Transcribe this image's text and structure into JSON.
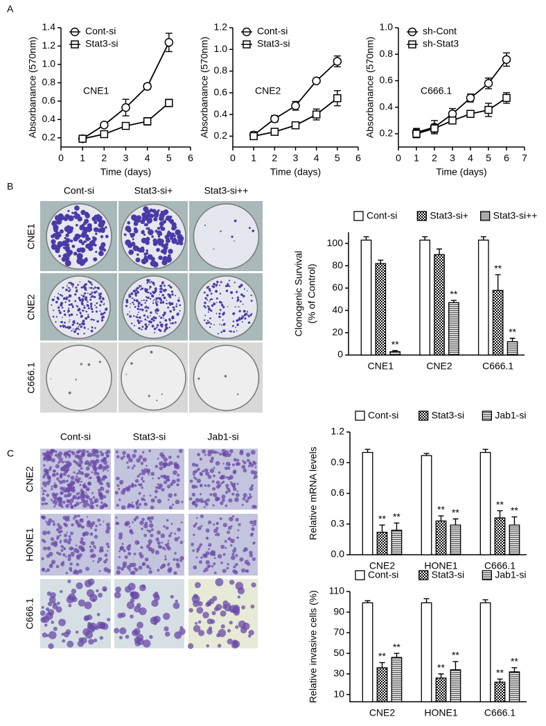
{
  "panel_labels": [
    "A",
    "B",
    "C"
  ],
  "colony_images": {
    "columns": [
      "Cont-si",
      "Stat3-si+",
      "Stat3-si++"
    ],
    "rows": [
      "CNE1",
      "CNE2",
      "C666.1"
    ]
  },
  "invasion_images": {
    "columns": [
      "Cont-si",
      "Stat3-si",
      "Jab1-si"
    ],
    "rows": [
      "CNE2",
      "HONE1",
      "C666.1"
    ]
  },
  "chart_data": [
    {
      "type": "line",
      "annotation": "CNE1",
      "xlabel": "Time (days)",
      "ylabel": "Absorbanance (570nm)",
      "x": [
        1,
        2,
        3,
        4,
        5
      ],
      "xlim": [
        0,
        6
      ],
      "xticks": [
        0,
        1,
        2,
        3,
        4,
        5,
        6
      ],
      "ylim": [
        0.1,
        1.4
      ],
      "yticks": [
        0.2,
        0.4,
        0.6,
        0.8,
        {
          "value": 1,
          "label": "1.0"
        },
        1.2,
        1.4
      ],
      "series": [
        {
          "name": "Cont-si",
          "marker": "circle",
          "color": "#000000",
          "values": [
            0.19,
            0.34,
            0.53,
            0.76,
            1.24
          ],
          "errors": [
            0.02,
            0.02,
            0.09,
            0.03,
            0.1
          ]
        },
        {
          "name": "Stat3-si",
          "marker": "square",
          "color": "#000000",
          "values": [
            0.19,
            0.24,
            0.33,
            0.38,
            0.58
          ],
          "errors": [
            0.02,
            0.02,
            0.02,
            0.04,
            0.04
          ]
        }
      ]
    },
    {
      "type": "line",
      "annotation": "CNE2",
      "xlabel": "Time (days)",
      "ylabel": "Absorbanance (570nm)",
      "x": [
        1,
        2,
        3,
        4,
        5
      ],
      "xlim": [
        0,
        6
      ],
      "xticks": [
        0,
        1,
        2,
        3,
        4,
        5,
        6
      ],
      "ylim": [
        0.1,
        1.2
      ],
      "yticks": [
        0.2,
        0.4,
        0.6,
        0.8,
        {
          "value": 1,
          "label": "1.0"
        },
        1.2
      ],
      "series": [
        {
          "name": "Cont-si",
          "marker": "circle",
          "color": "#000000",
          "values": [
            0.21,
            0.36,
            0.48,
            0.71,
            0.89
          ],
          "errors": [
            0.03,
            0.03,
            0.04,
            0.02,
            0.05
          ]
        },
        {
          "name": "Stat3-si",
          "marker": "square",
          "color": "#000000",
          "values": [
            0.2,
            0.24,
            0.3,
            0.4,
            0.55
          ],
          "errors": [
            0.02,
            0.02,
            0.02,
            0.05,
            0.07
          ]
        }
      ]
    },
    {
      "type": "line",
      "annotation": "C666.1",
      "xlabel": "Time (days)",
      "ylabel": "Absorbanance (570nm)",
      "x": [
        1,
        2,
        3,
        4,
        5,
        6
      ],
      "xlim": [
        0,
        7
      ],
      "xticks": [
        0,
        1,
        2,
        3,
        4,
        5,
        6,
        7
      ],
      "ylim": [
        0.1,
        1.0
      ],
      "yticks": [
        0.2,
        0.4,
        0.6,
        0.8,
        {
          "value": 1,
          "label": "1.0"
        }
      ],
      "series": [
        {
          "name": "sh-Cont",
          "marker": "circle",
          "color": "#000000",
          "values": [
            0.21,
            0.25,
            0.35,
            0.47,
            0.58,
            0.76
          ],
          "errors": [
            0.03,
            0.05,
            0.04,
            0.03,
            0.04,
            0.05
          ]
        },
        {
          "name": "sh-Stat3",
          "marker": "square",
          "color": "#000000",
          "values": [
            0.2,
            0.24,
            0.3,
            0.35,
            0.38,
            0.47
          ],
          "errors": [
            0.03,
            0.03,
            0.02,
            0.02,
            0.05,
            0.04
          ]
        }
      ]
    },
    {
      "type": "bar",
      "ylabel": [
        "Clonogenic Survival",
        "(% of Control)"
      ],
      "categories": [
        "CNE1",
        "CNE2",
        "C666.1"
      ],
      "ylim": [
        0,
        110
      ],
      "yticks": [
        0,
        20,
        40,
        60,
        80,
        100
      ],
      "series": [
        {
          "name": "Cont-si",
          "pattern": "none",
          "values": [
            103,
            103,
            103
          ],
          "errors": [
            3,
            3,
            3
          ],
          "significance": [
            null,
            null,
            null
          ]
        },
        {
          "name": "Stat3-si+",
          "pattern": "checker",
          "values": [
            82,
            90,
            58
          ],
          "errors": [
            3,
            5,
            14
          ],
          "significance": [
            null,
            null,
            "**"
          ]
        },
        {
          "name": "Stat3-si++",
          "pattern": "hlines",
          "values": [
            3,
            47,
            12
          ],
          "errors": [
            1,
            2,
            3
          ],
          "significance": [
            "**",
            "**",
            "**"
          ]
        }
      ]
    },
    {
      "type": "bar",
      "ylabel": [
        "Relative mRNA levels"
      ],
      "categories": [
        "CNE2",
        "HONE1",
        "C666.1"
      ],
      "ylim": [
        0,
        1.2
      ],
      "yticks": [
        {
          "value": 0,
          "label": "0.0"
        },
        0.3,
        0.6,
        0.9,
        1.2
      ],
      "series": [
        {
          "name": "Cont-si",
          "pattern": "none",
          "values": [
            1,
            0.97,
            1
          ],
          "errors": [
            0.03,
            0.02,
            0.03
          ],
          "significance": [
            null,
            null,
            null
          ]
        },
        {
          "name": "Stat3-si",
          "pattern": "checker",
          "values": [
            0.22,
            0.33,
            0.36
          ],
          "errors": [
            0.07,
            0.05,
            0.07
          ],
          "significance": [
            "**",
            "**",
            "**"
          ]
        },
        {
          "name": "Jab1-si",
          "pattern": "hlines",
          "values": [
            0.24,
            0.29,
            0.29
          ],
          "errors": [
            0.07,
            0.06,
            0.08
          ],
          "significance": [
            "**",
            "**",
            "**"
          ]
        }
      ]
    },
    {
      "type": "bar",
      "ylabel": [
        "Relative invasive cells (%)"
      ],
      "categories": [
        "CNE2",
        "HONE1",
        "C666.1"
      ],
      "ylim": [
        3,
        110
      ],
      "yticks": [
        10,
        30,
        50,
        70,
        90,
        110
      ],
      "series": [
        {
          "name": "Cont-si",
          "pattern": "none",
          "values": [
            99,
            99,
            99
          ],
          "errors": [
            2,
            4,
            3
          ],
          "significance": [
            null,
            null,
            null
          ]
        },
        {
          "name": "Stat3-si",
          "pattern": "checker",
          "values": [
            36,
            26,
            22
          ],
          "errors": [
            5,
            4,
            3
          ],
          "significance": [
            "**",
            "**",
            "**"
          ]
        },
        {
          "name": "Jab1-si",
          "pattern": "hlines",
          "values": [
            46,
            34,
            32
          ],
          "errors": [
            4,
            8,
            4
          ],
          "significance": [
            "**",
            "**",
            "**"
          ]
        }
      ]
    }
  ]
}
